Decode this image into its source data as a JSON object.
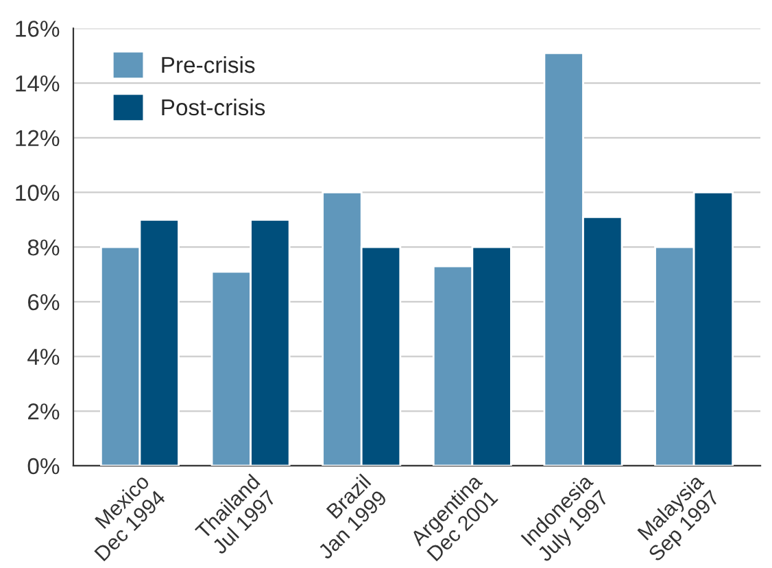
{
  "chart_data": {
    "type": "bar",
    "categories": [
      "Mexico\nDec 1994",
      "Thailand\nJul 1997",
      "Brazil\nJan 1999",
      "Argentina\nDec 2001",
      "Indonesia\nJuly 1997",
      "Malaysia\nSep 1997"
    ],
    "series": [
      {
        "name": "Pre-crisis",
        "color": "#6097bb",
        "values": [
          8.0,
          7.1,
          10.0,
          7.3,
          15.1,
          8.0
        ]
      },
      {
        "name": "Post-crisis",
        "color": "#004f7c",
        "values": [
          9.0,
          9.0,
          8.0,
          8.0,
          9.1,
          10.0
        ]
      }
    ],
    "ylim": [
      0,
      16
    ],
    "yticks": [
      {
        "value": 0,
        "label": "0%"
      },
      {
        "value": 2,
        "label": "2%"
      },
      {
        "value": 4,
        "label": "4%"
      },
      {
        "value": 6,
        "label": "6%"
      },
      {
        "value": 8,
        "label": "8%"
      },
      {
        "value": 10,
        "label": "10%"
      },
      {
        "value": 12,
        "label": "12%"
      },
      {
        "value": 14,
        "label": "14%"
      },
      {
        "value": 16,
        "label": "16%"
      }
    ],
    "grid": "y",
    "legend": "top left"
  }
}
